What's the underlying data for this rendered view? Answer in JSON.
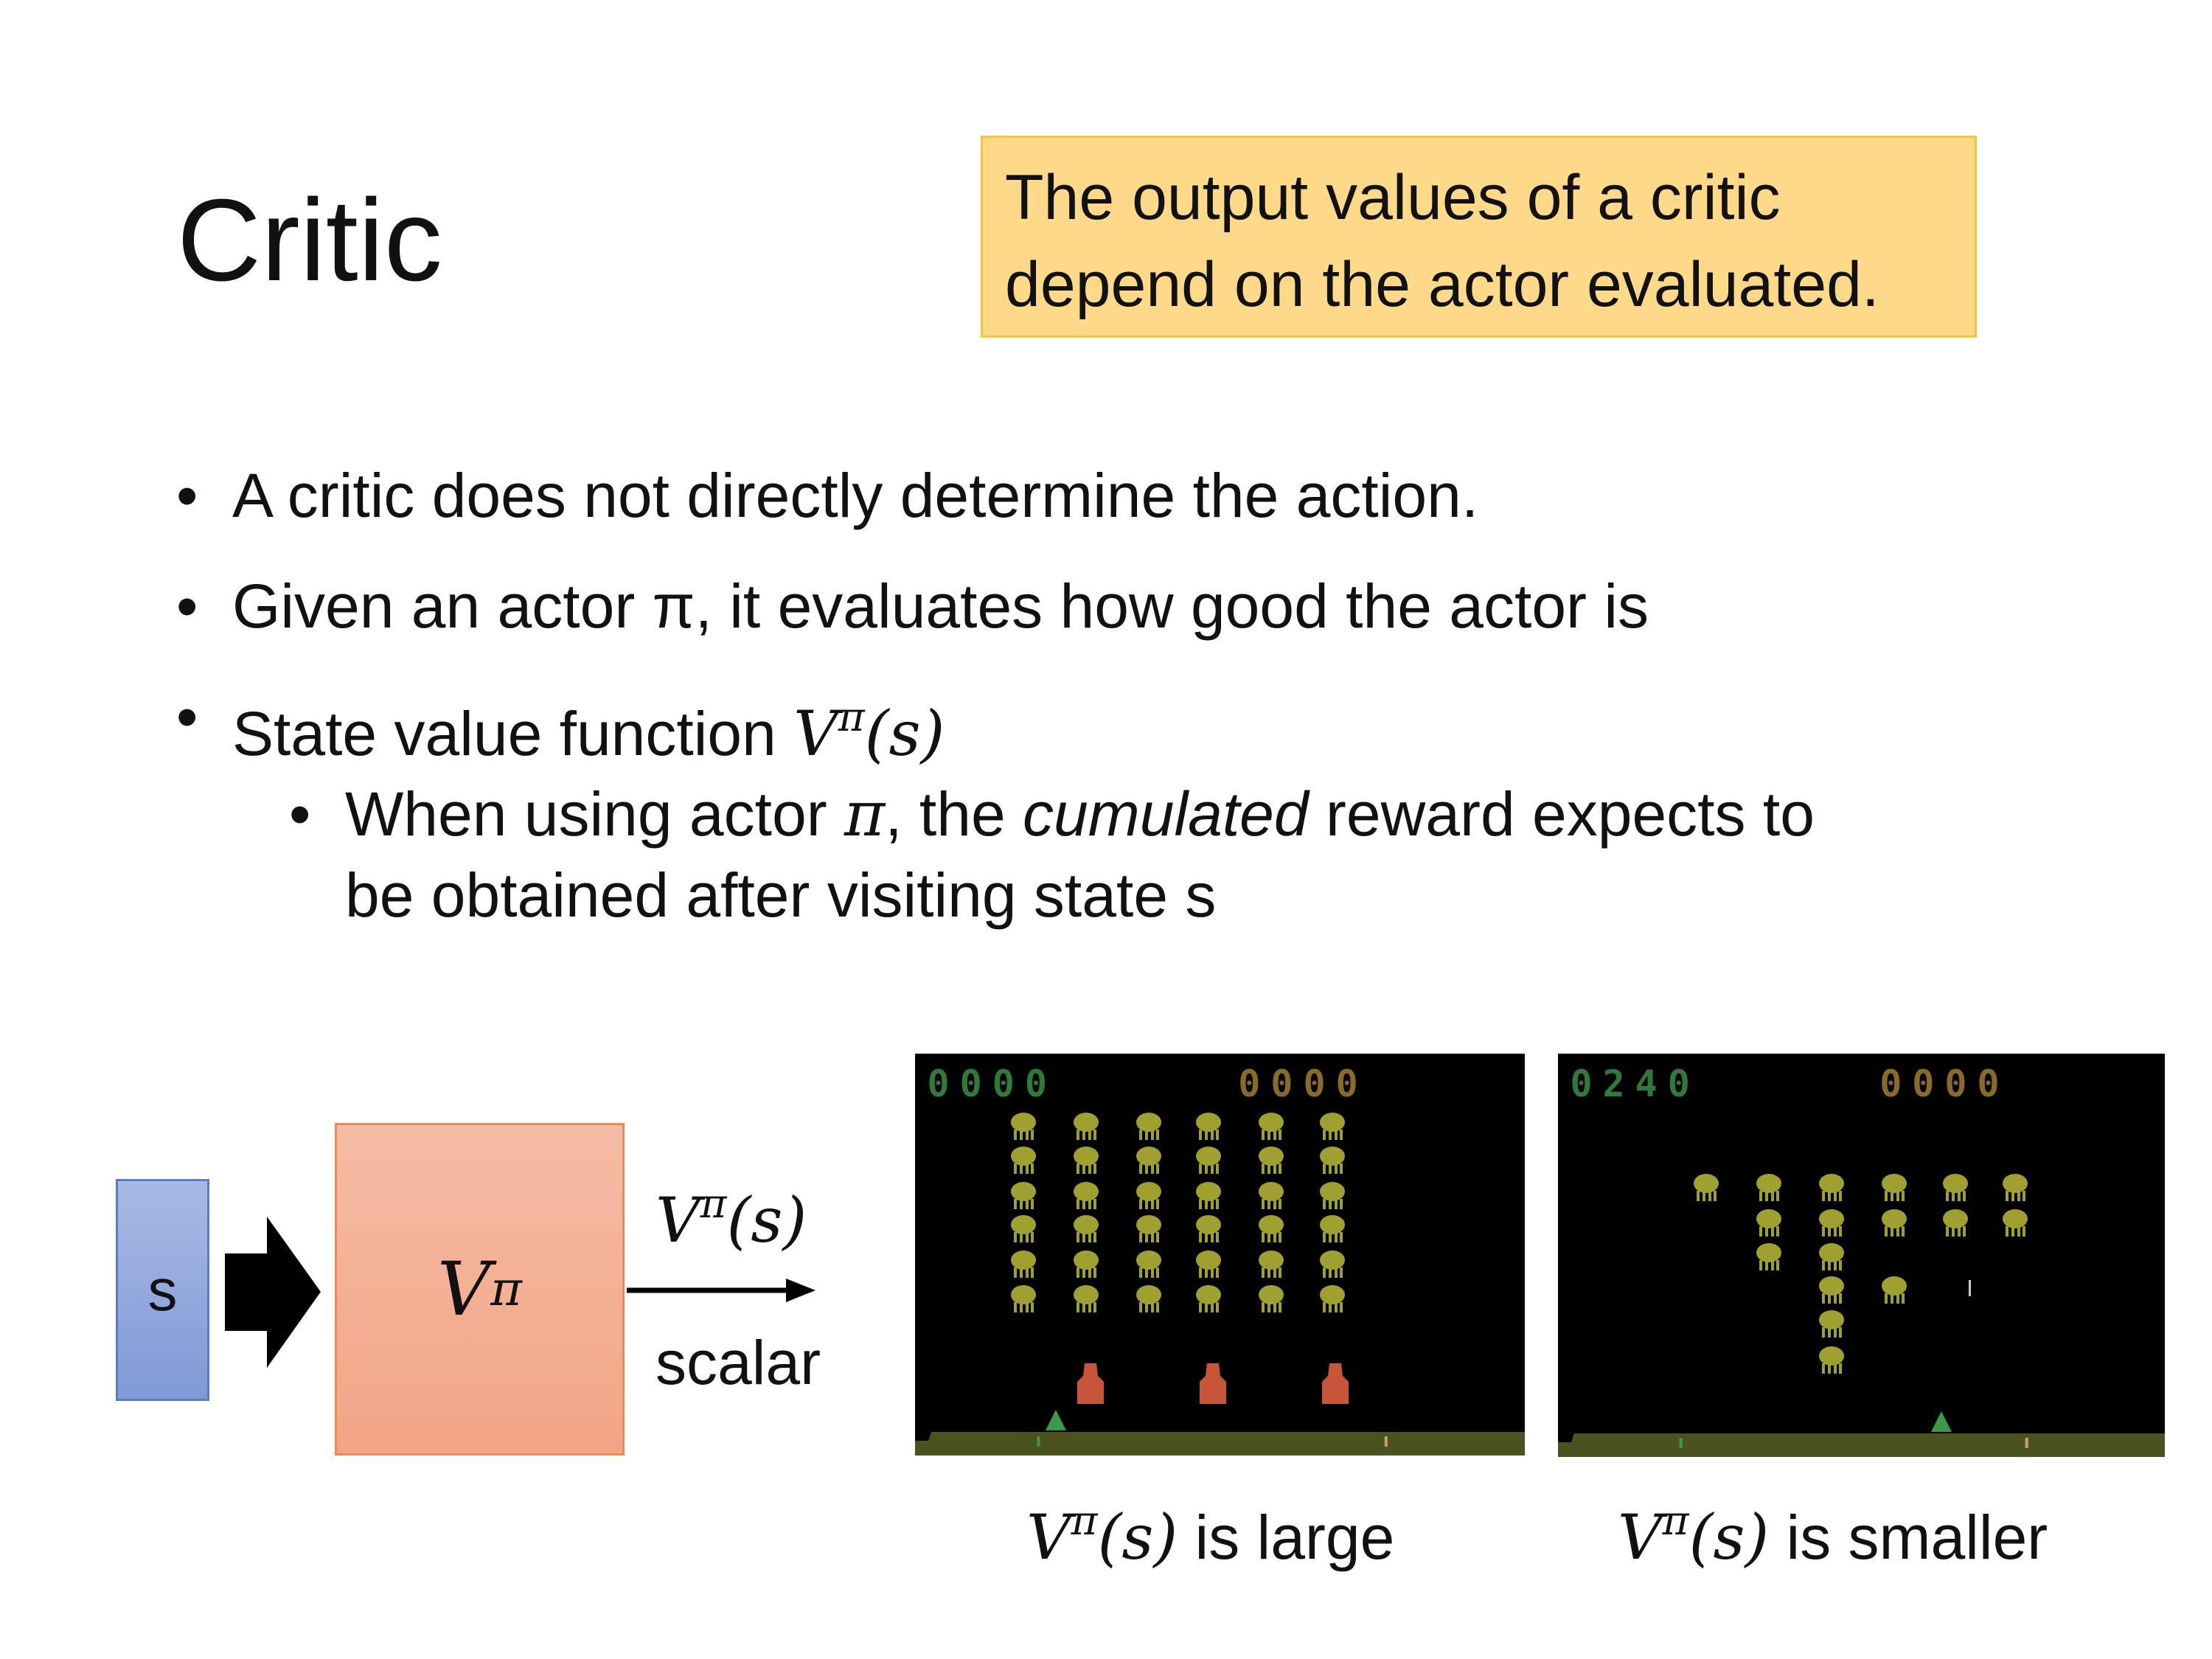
{
  "slide": {
    "title": "Critic",
    "callout": {
      "line1": "The output values of a critic",
      "line2": "depend on the actor evaluated.",
      "background": "#ffd98a"
    },
    "bullets": [
      {
        "text": "A critic does not directly determine the action."
      },
      {
        "text": "Given an actor π, it evaluates how good the actor is"
      },
      {
        "text": "State value function ",
        "math_base": "V",
        "math_sup": "π",
        "math_arg": "(s)"
      }
    ],
    "sub_bullet": {
      "part1": "When using actor ",
      "pi": "π",
      "part2": ", the ",
      "italic": "cumulated",
      "part3": " reward expects to",
      "line2": "be obtained after visiting state s"
    },
    "bullet_char": "•"
  },
  "diagram": {
    "input_label": "s",
    "network_base": "V",
    "network_sup": "π",
    "output_base": "V",
    "output_sup": "π",
    "output_arg": "(s)",
    "output_type": "scalar",
    "input_color": "#8fa8dc",
    "network_color": "#f3b096"
  },
  "games": [
    {
      "score_left": "0000",
      "score_right": "0000",
      "caption_base": "V",
      "caption_sup": "π",
      "caption_arg": "(s)",
      "caption_text": " is large"
    },
    {
      "score_left": "0240",
      "score_right": "0000",
      "caption_base": "V",
      "caption_sup": "π",
      "caption_arg": "(s)",
      "caption_text": " is smaller"
    }
  ]
}
